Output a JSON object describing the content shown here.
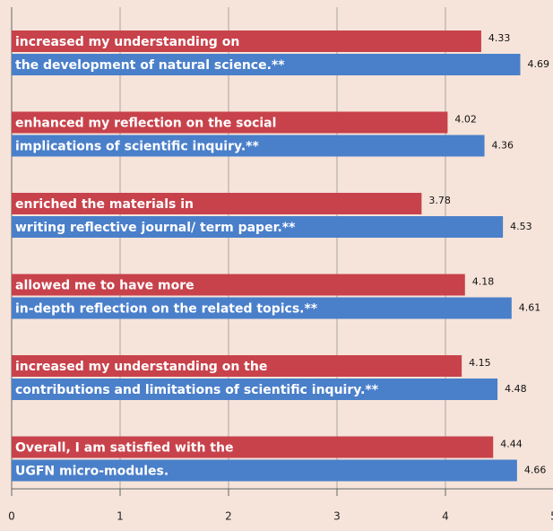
{
  "chart_data": {
    "type": "barh",
    "categories": [
      [
        "increased my understanding on",
        "the development of natural science.**"
      ],
      [
        "enhanced my reflection on the social",
        "implications of scientific inquiry.**"
      ],
      [
        "enriched the materials in",
        "writing reflective journal/ term paper.**"
      ],
      [
        "allowed me to have more",
        "in-depth reflection on the related topics.**"
      ],
      [
        "increased my understanding on the",
        "contributions and limitations of scientific inquiry.**"
      ],
      [
        "Overall, I am satisfied with the",
        "UGFN micro-modules."
      ]
    ],
    "series": [
      {
        "color": "#c8424b",
        "values": [
          4.33,
          4.02,
          3.78,
          4.18,
          4.15,
          4.44
        ]
      },
      {
        "color": "#4a7fca",
        "values": [
          4.69,
          4.36,
          4.53,
          4.61,
          4.48,
          4.66
        ]
      }
    ],
    "xlim": [
      0,
      5
    ],
    "xticks": [
      0,
      1,
      2,
      3,
      4,
      5
    ],
    "grid": true
  }
}
